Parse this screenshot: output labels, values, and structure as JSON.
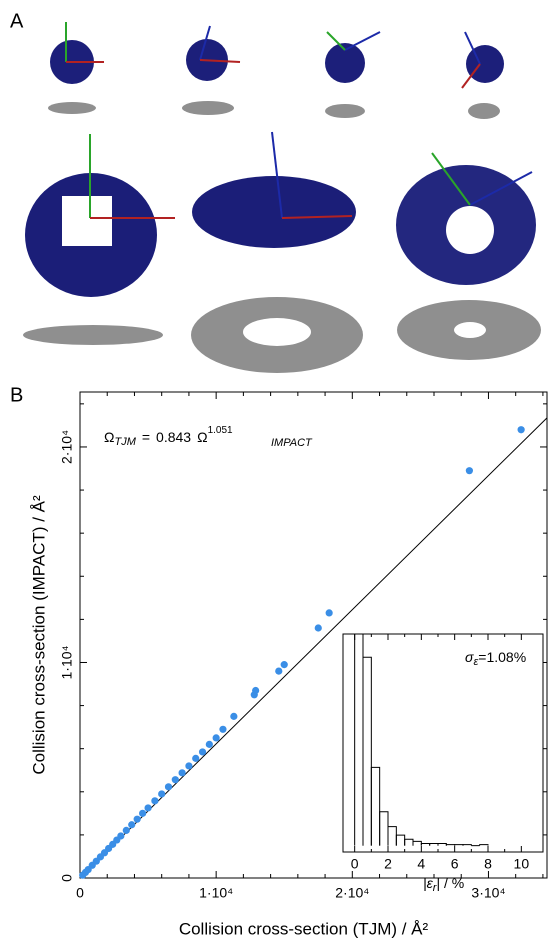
{
  "panels": {
    "a": "A",
    "b": "B"
  },
  "chart_data": [
    {
      "type": "scatter",
      "xlabel": "Collision cross-section (TJM) / Å²",
      "ylabel": "Collision cross-section (IMPACT) / Å²",
      "equation": {
        "lhs": "Ω",
        "lhs_sub": "TJM",
        "equals": "=",
        "rhs": "Ω",
        "rhs_sub": "IMPACT"
      },
      "fit": {
        "coefficient": 0.843,
        "exponent": 1.051
      },
      "fit_line": {
        "x": [
          0,
          34300
        ],
        "y": [
          0,
          21350
        ],
        "color": "#000000"
      },
      "series": [
        {
          "color": "#3a8ee6",
          "x": [
            32400,
            28600,
            18300,
            17500,
            15000,
            14600,
            12900,
            12800,
            11300,
            10500,
            10000,
            9500,
            9000,
            8500,
            8000,
            7500,
            7000,
            6500,
            6000,
            5500,
            5000,
            4600,
            4200,
            3800,
            3400,
            3000,
            2700,
            2400,
            2100,
            1800,
            1500,
            1200,
            900,
            600,
            400,
            200
          ],
          "values": [
            20800,
            18900,
            12300,
            11600,
            9900,
            9600,
            8700,
            8500,
            7500,
            6900,
            6500,
            6200,
            5850,
            5550,
            5200,
            4880,
            4560,
            4230,
            3900,
            3580,
            3250,
            3000,
            2730,
            2470,
            2210,
            1950,
            1760,
            1560,
            1370,
            1170,
            980,
            780,
            590,
            390,
            260,
            130
          ]
        }
      ],
      "xlim": [
        0,
        34300
      ],
      "ylim": [
        0,
        22550
      ],
      "xticks": [
        0,
        {
          "value": 10000,
          "label": "1·10⁴"
        },
        {
          "value": 20000,
          "label": "2·10⁴"
        },
        {
          "value": 30000,
          "label": "3·10⁴"
        }
      ],
      "yticks": [
        0,
        {
          "value": 10000,
          "label": "1·10⁴"
        },
        {
          "value": 20000,
          "label": "2·10⁴"
        }
      ],
      "minor_xticks": [
        2000,
        4000,
        6000,
        8000,
        12000,
        14000,
        16000,
        18000,
        22000,
        24000,
        26000,
        28000,
        32000,
        34000
      ],
      "minor_yticks": [
        2000,
        4000,
        6000,
        8000,
        12000,
        14000,
        16000,
        18000,
        22000
      ]
    },
    {
      "type": "histogram",
      "xlabel": {
        "main": "|ε",
        "sub": "r",
        "tail": "| / %"
      },
      "annotation": {
        "symbol": "σ",
        "sub": "ε",
        "text": "=1.08%"
      },
      "bins": [
        0,
        0.5,
        1,
        1.5,
        2,
        2.5,
        3,
        3.5,
        4,
        4.5,
        5,
        5.5,
        6,
        6.5,
        7,
        7.5,
        8
      ],
      "counts": [
        100,
        89,
        37,
        16,
        9,
        5,
        3,
        2,
        1,
        1,
        1,
        0.5,
        0.5,
        0.5,
        0,
        0.5
      ],
      "color": "#000000",
      "xlim": [
        -0.7,
        11.3
      ],
      "ylim": [
        -3,
        100
      ],
      "xticks": [
        0,
        2,
        4,
        6,
        8,
        10
      ],
      "minor_xticks": [
        1,
        3,
        5,
        7,
        9
      ]
    }
  ]
}
